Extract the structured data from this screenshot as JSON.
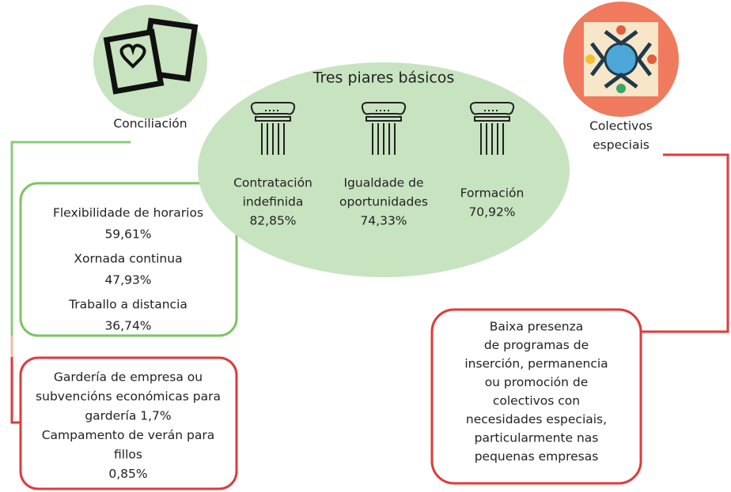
{
  "left": {
    "label": "Conciliación",
    "green_box": [
      "Flexibilidade de horarios",
      "59,61%",
      "Xornada continua",
      "47,93%",
      "Traballo a distancia",
      "36,74%"
    ],
    "red_box": [
      "Gardería de empresa ou",
      "subvencións económicas para",
      "gardería 1,7%",
      "Campamento de verán para",
      "fillos",
      "0,85%"
    ]
  },
  "center": {
    "title": "Tres piares básicos",
    "pillars": [
      {
        "label": [
          "Contratación",
          "indefinida"
        ],
        "value": "82,85%"
      },
      {
        "label": [
          "Igualdade de",
          "oportunidades"
        ],
        "value": "74,33%"
      },
      {
        "label": [
          "Formación"
        ],
        "value": "70,92%"
      }
    ]
  },
  "right": {
    "label": [
      "Colectivos",
      "especiais"
    ],
    "box": [
      "Baixa presenza",
      "de programas de",
      "inserción, permanencia",
      "ou promoción de",
      "colectivos con",
      "necesidades especiais,",
      "particularmente nas",
      "pequenas empresas"
    ]
  }
}
